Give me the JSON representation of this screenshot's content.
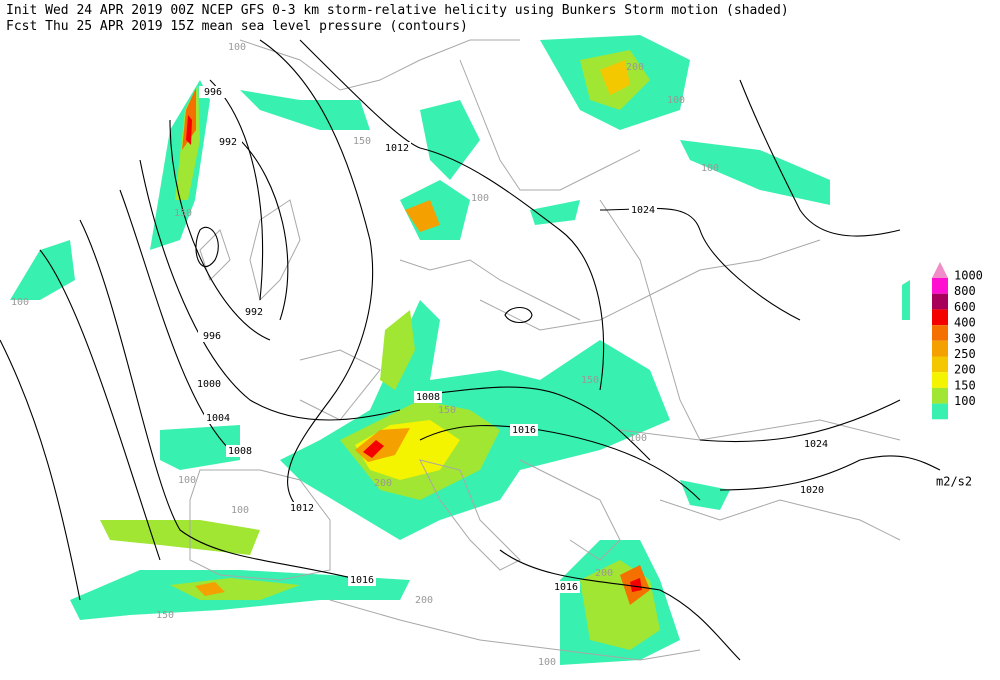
{
  "header": {
    "line1": "Init  Wed 24 APR 2019 00Z  NCEP GFS 0-3 km storm-relative helicity using Bunkers Storm motion (shaded)",
    "line2": "Fcst Thu 25 APR 2019 15Z  mean sea level pressure (contours)"
  },
  "legend": {
    "items": [
      {
        "label": "1000",
        "color": "#ff0fd0"
      },
      {
        "label": "800",
        "color": "#a8005a"
      },
      {
        "label": "600",
        "color": "#f40000"
      },
      {
        "label": "400",
        "color": "#f47000"
      },
      {
        "label": "300",
        "color": "#f4a000"
      },
      {
        "label": "250",
        "color": "#f4c800"
      },
      {
        "label": "200",
        "color": "#f4f400"
      },
      {
        "label": "150",
        "color": "#a0e632"
      },
      {
        "label": "100",
        "color": "#38f0b0"
      }
    ],
    "top_color": "#f08cc8",
    "unit": "m2/s2"
  },
  "isobar_labels": [
    "996",
    "992",
    "992",
    "996",
    "1000",
    "1004",
    "1008",
    "1012",
    "1012",
    "1008",
    "1016",
    "1016",
    "1016",
    "1024",
    "1024",
    "1020"
  ],
  "shaded_labels": [
    "100",
    "100",
    "100",
    "100",
    "100",
    "100",
    "150",
    "150",
    "200",
    "150",
    "200",
    "100",
    "150",
    "200",
    "100",
    "150",
    "100",
    "200"
  ]
}
